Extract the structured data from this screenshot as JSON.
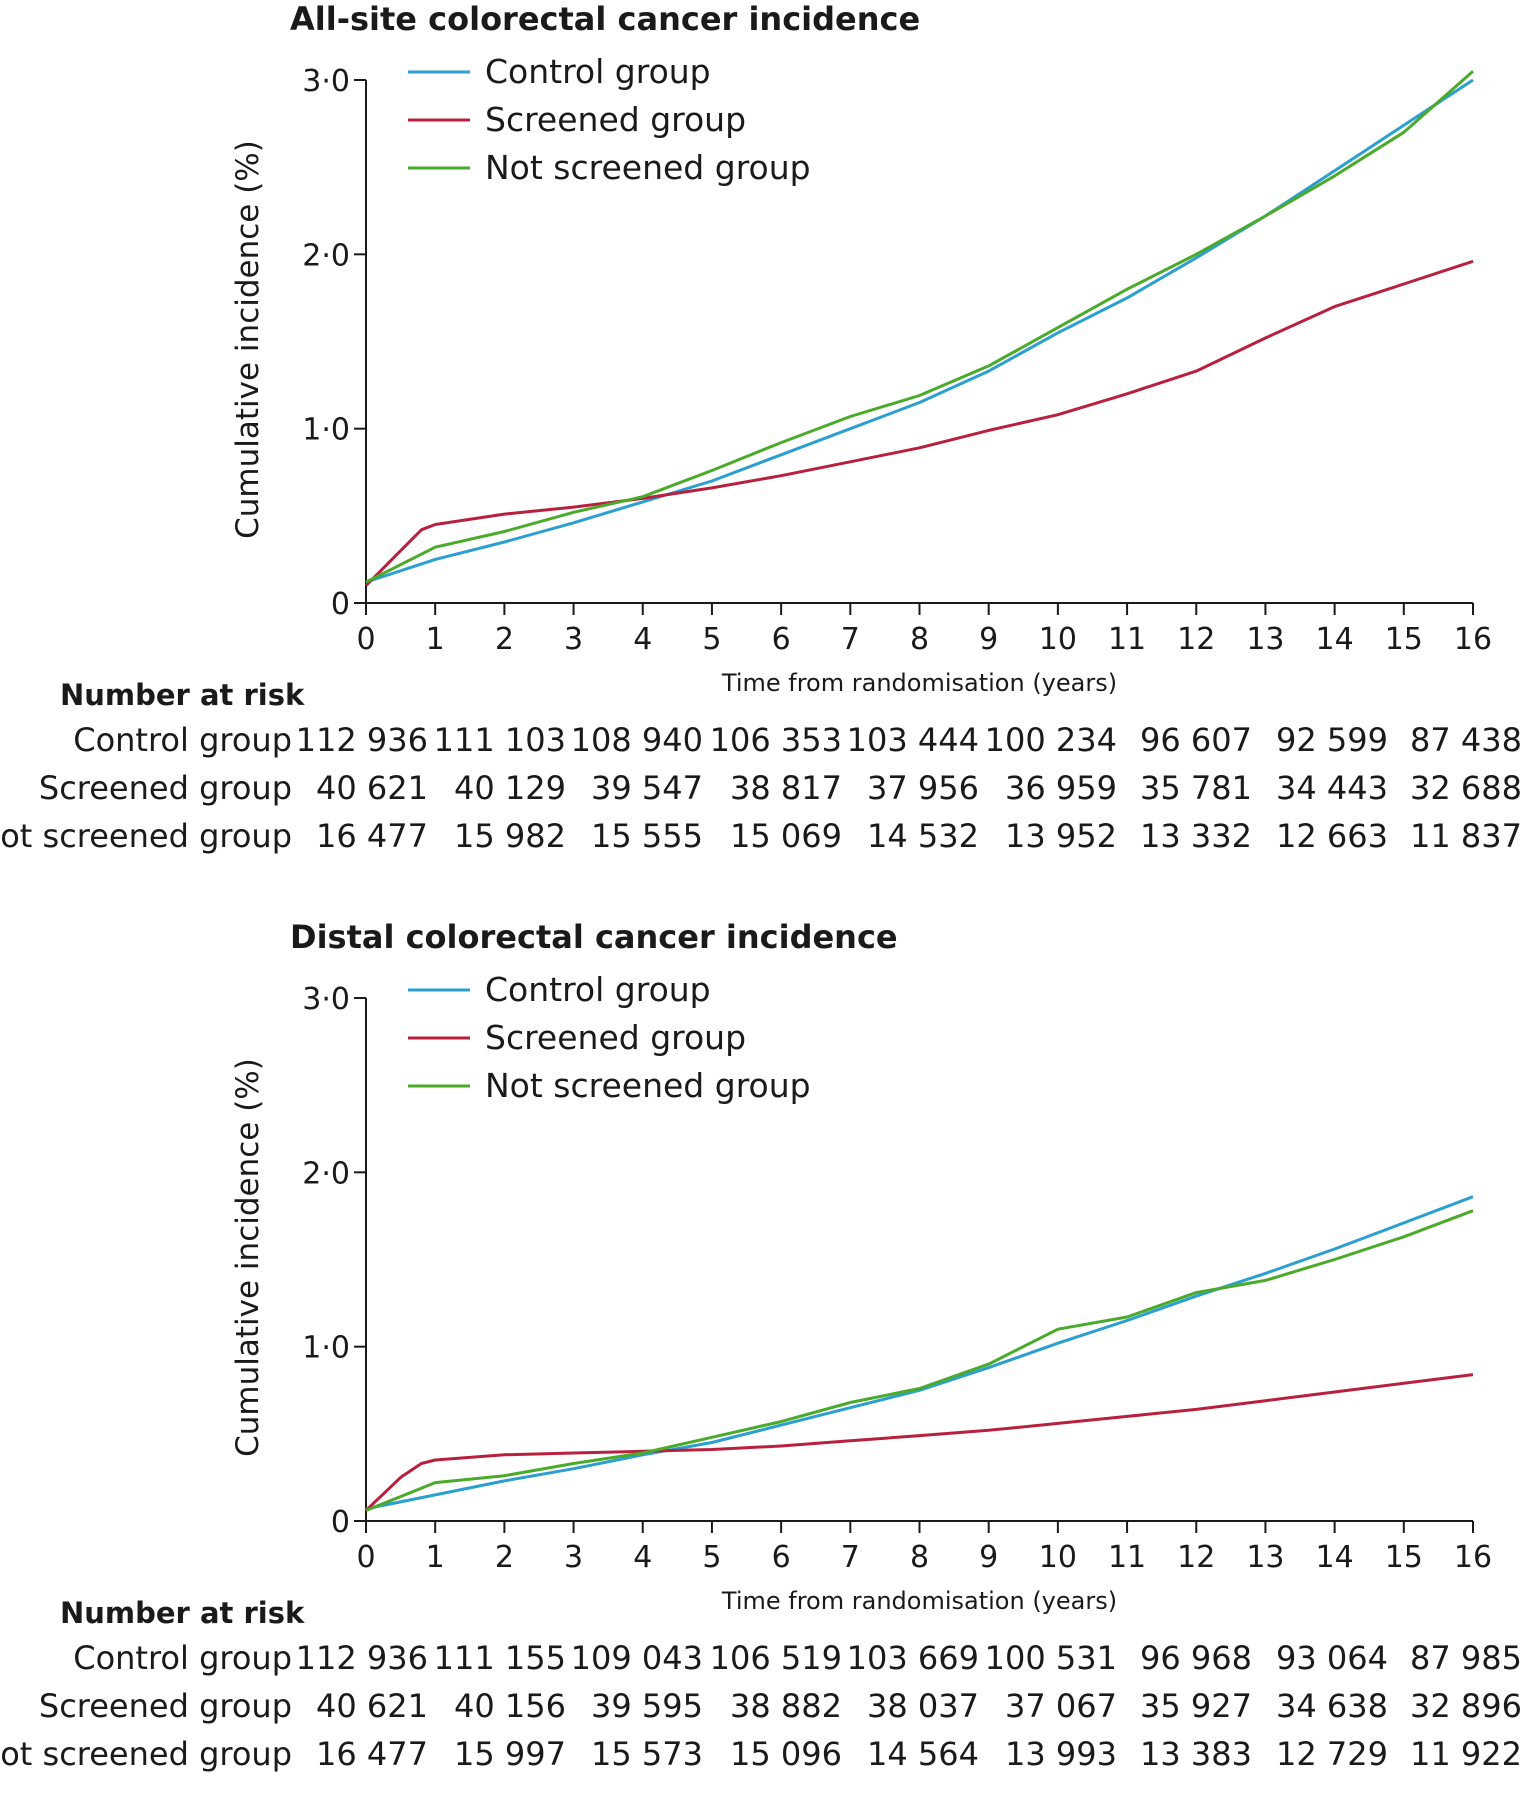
{
  "x_axis_label": "Time from randomisation (years)",
  "y_axis_label": "Cumulative incidence (%)",
  "risk_heading": "Number at risk",
  "colors": {
    "control": "#2a9fd0",
    "screened": "#b8203e",
    "not_screened": "#4aaa2a"
  },
  "chart_data": [
    {
      "type": "line",
      "title": "All-site colorectal cancer incidence",
      "xlabel": "Time from randomisation (years)",
      "ylabel": "Cumulative incidence (%)",
      "xlim": [
        0,
        16
      ],
      "ylim": [
        0,
        3
      ],
      "x_ticks": [
        "0",
        "1",
        "2",
        "3",
        "4",
        "5",
        "6",
        "7",
        "8",
        "9",
        "10",
        "11",
        "12",
        "13",
        "14",
        "15",
        "16"
      ],
      "y_ticks": [
        "0",
        "1·0",
        "2·0",
        "3·0"
      ],
      "legend": {
        "position": "top-left",
        "entries": [
          "Control group",
          "Screened group",
          "Not screened group"
        ]
      },
      "series": [
        {
          "name": "Control group",
          "color_key": "control",
          "x": [
            0,
            1,
            2,
            3,
            4,
            5,
            6,
            7,
            8,
            9,
            10,
            11,
            12,
            13,
            14,
            15,
            16
          ],
          "y": [
            0.12,
            0.25,
            0.35,
            0.46,
            0.58,
            0.7,
            0.85,
            1.0,
            1.15,
            1.33,
            1.55,
            1.75,
            1.98,
            2.22,
            2.48,
            2.74,
            3.0
          ]
        },
        {
          "name": "Screened group",
          "color_key": "screened",
          "x": [
            0,
            0.5,
            0.8,
            1,
            2,
            3,
            4,
            5,
            6,
            7,
            8,
            9,
            10,
            11,
            12,
            13,
            14,
            15,
            16
          ],
          "y": [
            0.1,
            0.3,
            0.42,
            0.45,
            0.51,
            0.55,
            0.6,
            0.66,
            0.73,
            0.81,
            0.89,
            0.99,
            1.08,
            1.2,
            1.33,
            1.52,
            1.7,
            1.83,
            1.96
          ]
        },
        {
          "name": "Not screened group",
          "color_key": "not_screened",
          "x": [
            0,
            1,
            2,
            3,
            4,
            5,
            6,
            7,
            8,
            9,
            10,
            11,
            12,
            13,
            14,
            15,
            16
          ],
          "y": [
            0.12,
            0.32,
            0.41,
            0.52,
            0.61,
            0.76,
            0.92,
            1.07,
            1.19,
            1.36,
            1.58,
            1.8,
            2.0,
            2.22,
            2.45,
            2.7,
            3.05
          ]
        }
      ]
    },
    {
      "type": "line",
      "title": "Distal colorectal cancer incidence",
      "xlabel": "Time from randomisation (years)",
      "ylabel": "Cumulative incidence (%)",
      "xlim": [
        0,
        16
      ],
      "ylim": [
        0,
        3
      ],
      "x_ticks": [
        "0",
        "1",
        "2",
        "3",
        "4",
        "5",
        "6",
        "7",
        "8",
        "9",
        "10",
        "11",
        "12",
        "13",
        "14",
        "15",
        "16"
      ],
      "y_ticks": [
        "0",
        "1·0",
        "2·0",
        "3·0"
      ],
      "legend": {
        "position": "top-left",
        "entries": [
          "Control group",
          "Screened group",
          "Not screened group"
        ]
      },
      "series": [
        {
          "name": "Control group",
          "color_key": "control",
          "x": [
            0,
            1,
            2,
            3,
            4,
            5,
            6,
            7,
            8,
            9,
            10,
            11,
            12,
            13,
            14,
            15,
            16
          ],
          "y": [
            0.07,
            0.15,
            0.23,
            0.3,
            0.38,
            0.45,
            0.55,
            0.65,
            0.75,
            0.88,
            1.02,
            1.15,
            1.29,
            1.42,
            1.56,
            1.71,
            1.86
          ]
        },
        {
          "name": "Screened group",
          "color_key": "screened",
          "x": [
            0,
            0.5,
            0.8,
            1,
            2,
            3,
            4,
            5,
            6,
            7,
            8,
            9,
            10,
            11,
            12,
            13,
            14,
            15,
            16
          ],
          "y": [
            0.06,
            0.25,
            0.33,
            0.35,
            0.38,
            0.39,
            0.4,
            0.41,
            0.43,
            0.46,
            0.49,
            0.52,
            0.56,
            0.6,
            0.64,
            0.69,
            0.74,
            0.79,
            0.84
          ]
        },
        {
          "name": "Not screened group",
          "color_key": "not_screened",
          "x": [
            0,
            1,
            2,
            3,
            4,
            5,
            6,
            7,
            8,
            9,
            10,
            11,
            12,
            13,
            14,
            15,
            16
          ],
          "y": [
            0.06,
            0.22,
            0.26,
            0.33,
            0.39,
            0.48,
            0.57,
            0.68,
            0.76,
            0.9,
            1.1,
            1.17,
            1.31,
            1.38,
            1.5,
            1.63,
            1.78
          ]
        }
      ]
    }
  ],
  "risk_tables": [
    {
      "rows": [
        {
          "label": "Control group",
          "values": [
            "112 936",
            "111 103",
            "108 940",
            "106 353",
            "103 444",
            "100 234",
            "96 607",
            "92 599",
            "87 438"
          ]
        },
        {
          "label": "Screened group",
          "values": [
            "40 621",
            "40 129",
            "39 547",
            "38 817",
            "37 956",
            "36 959",
            "35 781",
            "34 443",
            "32 688"
          ]
        },
        {
          "label": "Not screened group",
          "values": [
            "16 477",
            "15 982",
            "15 555",
            "15 069",
            "14 532",
            "13 952",
            "13 332",
            "12 663",
            "11 837"
          ]
        }
      ]
    },
    {
      "rows": [
        {
          "label": "Control group",
          "values": [
            "112 936",
            "111 155",
            "109 043",
            "106 519",
            "103 669",
            "100 531",
            "96 968",
            "93 064",
            "87 985"
          ]
        },
        {
          "label": "Screened group",
          "values": [
            "40 621",
            "40 156",
            "39 595",
            "38 882",
            "38 037",
            "37 067",
            "35 927",
            "34 638",
            "32 896"
          ]
        },
        {
          "label": "Not screened group",
          "values": [
            "16 477",
            "15 997",
            "15 573",
            "15 096",
            "14 564",
            "13 993",
            "13 383",
            "12 729",
            "11 922"
          ]
        }
      ]
    }
  ]
}
